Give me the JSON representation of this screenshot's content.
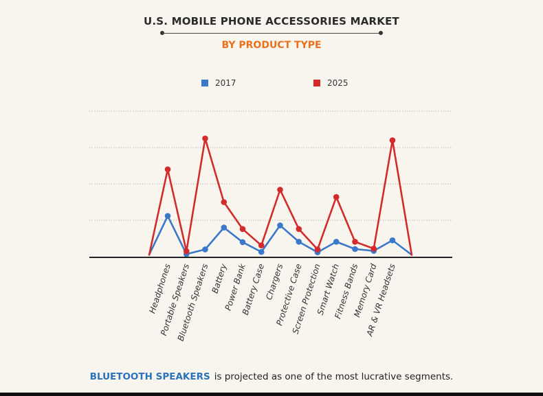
{
  "header": {
    "title": "U.S. MOBILE PHONE ACCESSORIES MARKET",
    "subtitle": "BY PRODUCT TYPE"
  },
  "legend": {
    "items": [
      {
        "label": "2017",
        "color": "#3a78c9"
      },
      {
        "label": "2025",
        "color": "#d32a2a"
      }
    ]
  },
  "footer": {
    "highlight": "BLUETOOTH SPEAKERS",
    "text": "is projected as one of the most lucrative segments."
  },
  "chart_data": {
    "type": "line",
    "title": "U.S. MOBILE PHONE ACCESSORIES MARKET",
    "subtitle": "BY PRODUCT TYPE",
    "xlabel": "",
    "ylabel": "",
    "ylim": [
      0,
      4
    ],
    "grid": true,
    "legend_position": "top",
    "categories": [
      "Headphones",
      "Portable Speakers",
      "Bluetooth Speakers",
      "Battery",
      "Power Bank",
      "Battery Case",
      "Chargers",
      "Protective Case",
      "Screen Protection",
      "Smart Watch",
      "Fitness Bands",
      "Memory Card",
      "AR & VR Headsets"
    ],
    "series": [
      {
        "name": "2017",
        "color": "#3a78c9",
        "start": 0.05,
        "end": 0.05,
        "values": [
          1.12,
          0.07,
          0.2,
          0.8,
          0.4,
          0.13,
          0.86,
          0.41,
          0.12,
          0.41,
          0.21,
          0.16,
          0.45
        ]
      },
      {
        "name": "2025",
        "color": "#d32a2a",
        "start": 0.05,
        "end": 0.05,
        "values": [
          2.4,
          0.15,
          3.25,
          1.5,
          0.76,
          0.31,
          1.84,
          0.76,
          0.2,
          1.64,
          0.41,
          0.22,
          3.2
        ]
      }
    ]
  }
}
